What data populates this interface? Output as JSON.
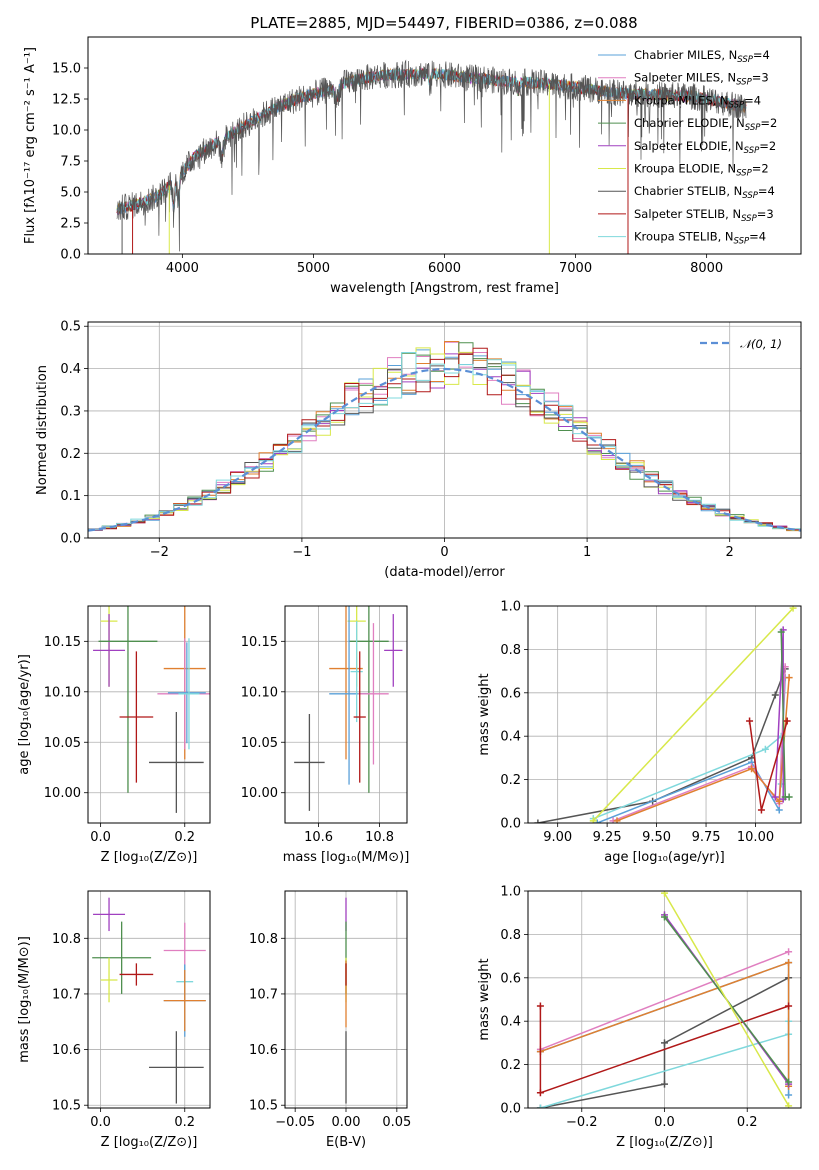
{
  "colors": {
    "chabrier_miles": "#5aa0d8",
    "salpeter_miles": "#e07fc0",
    "kroupa_miles": "#e08030",
    "chabrier_elodie": "#4f8f4f",
    "salpeter_elodie": "#a040c0",
    "kroupa_elodie": "#d8e84a",
    "chabrier_stelib": "#555555",
    "salpeter_stelib": "#b01818",
    "kroupa_stelib": "#7fd8dc",
    "gaussian": "#5b8fd6"
  },
  "chart_data": [
    {
      "id": "spectrum",
      "type": "line",
      "title": "PLATE=2885, MJD=54497, FIBERID=0386, z=0.088",
      "xlabel": "wavelength [Angstrom, rest frame]",
      "ylabel": "Flux [fλ10⁻¹⁷ erg cm⁻² s⁻¹ A⁻¹]",
      "xlim": [
        3280,
        8720
      ],
      "ylim": [
        0,
        17.5
      ],
      "xticks": [
        "4000",
        "5000",
        "6000",
        "7000",
        "8000"
      ],
      "yticks": [
        "0.0",
        "2.5",
        "5.0",
        "7.5",
        "10.0",
        "12.5",
        "15.0"
      ],
      "continuum": {
        "x": [
          3500,
          3650,
          3800,
          3950,
          4100,
          4300,
          4500,
          4700,
          4900,
          5100,
          5300,
          5500,
          5700,
          5900,
          6100,
          6300,
          6500,
          6700,
          6900,
          7100,
          7300,
          7500,
          7700,
          7900,
          8100,
          8300
        ],
        "y": [
          3.6,
          4.0,
          4.6,
          6.0,
          7.9,
          9.2,
          10.5,
          11.7,
          12.6,
          13.2,
          14.0,
          14.4,
          14.5,
          14.6,
          14.3,
          14.1,
          13.9,
          13.8,
          13.6,
          13.3,
          13.0,
          12.9,
          12.8,
          12.7,
          12.3,
          11.8
        ]
      },
      "legend_position": "right",
      "legend": [
        {
          "label": "Chabrier MILES, N",
          "sub": "SSP",
          "eq": "=4",
          "color": "#5aa0d8"
        },
        {
          "label": "Salpeter MILES, N",
          "sub": "SSP",
          "eq": "=3",
          "color": "#e07fc0"
        },
        {
          "label": "Kroupa MILES, N",
          "sub": "SSP",
          "eq": "=4",
          "color": "#e08030"
        },
        {
          "label": "Chabrier ELODIE, N",
          "sub": "SSP",
          "eq": "=2",
          "color": "#4f8f4f"
        },
        {
          "label": "Salpeter ELODIE, N",
          "sub": "SSP",
          "eq": "=2",
          "color": "#a040c0"
        },
        {
          "label": "Kroupa ELODIE, N",
          "sub": "SSP",
          "eq": "=2",
          "color": "#d8e84a"
        },
        {
          "label": "Chabrier STELIB, N",
          "sub": "SSP",
          "eq": "=4",
          "color": "#555555"
        },
        {
          "label": "Salpeter STELIB, N",
          "sub": "SSP",
          "eq": "=3",
          "color": "#b01818"
        },
        {
          "label": "Kroupa STELIB, N",
          "sub": "SSP",
          "eq": "=4",
          "color": "#7fd8dc"
        }
      ]
    },
    {
      "id": "residuals",
      "type": "histogram",
      "xlabel": "(data-model)/error",
      "ylabel": "Normed distribution",
      "xlim": [
        -2.5,
        2.5
      ],
      "ylim": [
        0,
        0.51
      ],
      "xticks": [
        "−2",
        "−1",
        "0",
        "1",
        "2"
      ],
      "yticks": [
        "0.0",
        "0.1",
        "0.2",
        "0.3",
        "0.4",
        "0.5"
      ],
      "bin_width": 0.1,
      "legend_label": "𝒩(0, 1)",
      "grid": true
    },
    {
      "id": "age_vs_Z",
      "type": "errorbar",
      "xlabel": "Z [log₁₀(Z/Z⊙)]",
      "ylabel": "age  [log₁₀(age/yr)]",
      "xlim": [
        -0.03,
        0.26
      ],
      "ylim": [
        9.97,
        10.185
      ],
      "xticks": [
        "0.0",
        "0.2"
      ],
      "yticks": [
        "10.00",
        "10.05",
        "10.10",
        "10.15"
      ],
      "points": [
        {
          "x": 0.02,
          "y": 10.17,
          "xerr": 0.02,
          "yerr": 0.065,
          "color": "#d8e84a"
        },
        {
          "x": 0.02,
          "y": 10.141,
          "xerr": 0.038,
          "yerr": 0.036,
          "color": "#a040c0"
        },
        {
          "x": 0.065,
          "y": 10.15,
          "xerr": 0.07,
          "yerr": 0.15,
          "color": "#4f8f4f"
        },
        {
          "x": 0.2,
          "y": 10.123,
          "xerr": 0.05,
          "yerr": 0.09,
          "color": "#e08030"
        },
        {
          "x": 0.2,
          "y": 10.098,
          "xerr": 0.065,
          "yerr": 0.055,
          "color": "#e07fc0"
        },
        {
          "x": 0.205,
          "y": 10.099,
          "xerr": 0.045,
          "yerr": 0.05,
          "color": "#5aa0d8"
        },
        {
          "x": 0.21,
          "y": 10.098,
          "xerr": 0.025,
          "yerr": 0.055,
          "color": "#7fd8dc"
        },
        {
          "x": 0.085,
          "y": 10.075,
          "xerr": 0.04,
          "yerr": 0.065,
          "color": "#b01818"
        },
        {
          "x": 0.18,
          "y": 10.03,
          "xerr": 0.065,
          "yerr": 0.05,
          "color": "#555555"
        }
      ]
    },
    {
      "id": "age_vs_mass",
      "type": "errorbar",
      "xlabel": "mass [log₁₀(M/M⊙)]",
      "ylabel": "",
      "xlim": [
        10.49,
        10.89
      ],
      "ylim": [
        9.97,
        10.185
      ],
      "xticks": [
        "10.6",
        "10.8"
      ],
      "yticks": [
        "10.00",
        "10.05",
        "10.10",
        "10.15"
      ],
      "points": [
        {
          "x": 10.725,
          "y": 10.17,
          "xerr": 0.03,
          "yerr": 0.065,
          "color": "#d8e84a"
        },
        {
          "x": 10.845,
          "y": 10.141,
          "xerr": 0.03,
          "yerr": 0.036,
          "color": "#a040c0"
        },
        {
          "x": 10.765,
          "y": 10.15,
          "xerr": 0.065,
          "yerr": 0.15,
          "color": "#4f8f4f"
        },
        {
          "x": 10.69,
          "y": 10.123,
          "xerr": 0.055,
          "yerr": 0.09,
          "color": "#e08030"
        },
        {
          "x": 10.7,
          "y": 10.098,
          "xerr": 0.065,
          "yerr": 0.09,
          "color": "#5aa0d8"
        },
        {
          "x": 10.78,
          "y": 10.098,
          "xerr": 0.05,
          "yerr": 0.07,
          "color": "#e07fc0"
        },
        {
          "x": 10.725,
          "y": 10.12,
          "xerr": 0.02,
          "yerr": 0.05,
          "color": "#7fd8dc"
        },
        {
          "x": 10.735,
          "y": 10.075,
          "xerr": 0.02,
          "yerr": 0.065,
          "color": "#b01818"
        },
        {
          "x": 10.57,
          "y": 10.03,
          "xerr": 0.05,
          "yerr": 0.048,
          "color": "#555555"
        }
      ]
    },
    {
      "id": "weight_vs_age",
      "type": "line",
      "xlabel": "age  [log₁₀(age/yr)]",
      "ylabel": "mass weight",
      "xlim": [
        8.85,
        10.23
      ],
      "ylim": [
        0,
        1
      ],
      "xticks": [
        "9.00",
        "9.25",
        "9.50",
        "9.75",
        "10.00"
      ],
      "yticks": [
        "0.0",
        "0.2",
        "0.4",
        "0.6",
        "0.8",
        "1.0"
      ],
      "series": [
        {
          "color": "#555555",
          "x": [
            8.9,
            9.48,
            9.98,
            10.1,
            10.15
          ],
          "y": [
            0.0,
            0.1,
            0.3,
            0.59,
            0.71
          ]
        },
        {
          "color": "#7fd8dc",
          "x": [
            9.18,
            10.05,
            10.13,
            10.13
          ],
          "y": [
            0.02,
            0.34,
            0.4,
            0.18
          ]
        },
        {
          "color": "#5aa0d8",
          "x": [
            9.2,
            9.98,
            10.12,
            10.15
          ],
          "y": [
            0.0,
            0.28,
            0.06,
            0.67
          ]
        },
        {
          "color": "#e07fc0",
          "x": [
            9.28,
            9.98,
            10.12,
            10.15
          ],
          "y": [
            0.01,
            0.26,
            0.09,
            0.72
          ]
        },
        {
          "color": "#e08030",
          "x": [
            9.3,
            9.98,
            10.12,
            10.17
          ],
          "y": [
            0.01,
            0.25,
            0.1,
            0.67
          ]
        },
        {
          "color": "#a040c0",
          "x": [
            10.1,
            10.14,
            10.14
          ],
          "y": [
            0.12,
            0.89,
            0.11
          ]
        },
        {
          "color": "#4f8f4f",
          "x": [
            10.13,
            10.15,
            10.17
          ],
          "y": [
            0.88,
            0.12,
            0.12
          ]
        },
        {
          "color": "#b01818",
          "x": [
            9.97,
            10.03,
            10.16
          ],
          "y": [
            0.47,
            0.06,
            0.47
          ]
        },
        {
          "color": "#d8e84a",
          "x": [
            9.18,
            10.19
          ],
          "y": [
            0.01,
            0.99
          ]
        }
      ]
    },
    {
      "id": "mass_vs_Z",
      "type": "errorbar",
      "xlabel": "Z [log₁₀(Z/Z⊙)]",
      "ylabel": "mass [log₁₀(M/M⊙)]",
      "xlim": [
        -0.03,
        0.26
      ],
      "ylim": [
        10.495,
        10.885
      ],
      "xticks": [
        "0.0",
        "0.2"
      ],
      "yticks": [
        "10.5",
        "10.6",
        "10.7",
        "10.8"
      ],
      "points": [
        {
          "x": 0.02,
          "y": 10.843,
          "xerr": 0.038,
          "yerr": 0.03,
          "color": "#a040c0"
        },
        {
          "x": 0.05,
          "y": 10.765,
          "xerr": 0.07,
          "yerr": 0.065,
          "color": "#4f8f4f"
        },
        {
          "x": 0.02,
          "y": 10.725,
          "xerr": 0.02,
          "yerr": 0.04,
          "color": "#d8e84a"
        },
        {
          "x": 0.085,
          "y": 10.735,
          "xerr": 0.04,
          "yerr": 0.02,
          "color": "#b01818"
        },
        {
          "x": 0.2,
          "y": 10.778,
          "xerr": 0.05,
          "yerr": 0.05,
          "color": "#e07fc0"
        },
        {
          "x": 0.2,
          "y": 10.722,
          "xerr": 0.02,
          "yerr": 0.03,
          "color": "#7fd8dc"
        },
        {
          "x": 0.2,
          "y": 10.688,
          "xerr": 0.05,
          "yerr": 0.065,
          "color": "#5aa0d8"
        },
        {
          "x": 0.2,
          "y": 10.688,
          "xerr": 0.05,
          "yerr": 0.055,
          "color": "#e08030"
        },
        {
          "x": 0.18,
          "y": 10.568,
          "xerr": 0.065,
          "yerr": 0.065,
          "color": "#555555"
        }
      ]
    },
    {
      "id": "mass_vs_ebv",
      "type": "errorbar",
      "xlabel": "E(B-V)",
      "ylabel": "",
      "xlim": [
        -0.06,
        0.06
      ],
      "ylim": [
        10.495,
        10.885
      ],
      "xticks": [
        "−0.05",
        "0.00",
        "0.05"
      ],
      "yticks": [
        "10.5",
        "10.6",
        "10.7",
        "10.8"
      ],
      "points": [
        {
          "x": 0,
          "y": 10.843,
          "xerr": 0,
          "yerr": 0.03,
          "color": "#a040c0"
        },
        {
          "x": 0,
          "y": 10.765,
          "xerr": 0,
          "yerr": 0.065,
          "color": "#4f8f4f"
        },
        {
          "x": 0,
          "y": 10.725,
          "xerr": 0,
          "yerr": 0.04,
          "color": "#d8e84a"
        },
        {
          "x": 0,
          "y": 10.7,
          "xerr": 0,
          "yerr": 0.06,
          "color": "#e08030"
        },
        {
          "x": 0,
          "y": 10.735,
          "xerr": 0,
          "yerr": 0.02,
          "color": "#b01818"
        },
        {
          "x": 0,
          "y": 10.568,
          "xerr": 0,
          "yerr": 0.065,
          "color": "#555555"
        }
      ]
    },
    {
      "id": "weight_vs_Z",
      "type": "line",
      "xlabel": "Z [log₁₀(Z/Z⊙)]",
      "ylabel": "mass weight",
      "xlim": [
        -0.33,
        0.33
      ],
      "ylim": [
        0,
        1
      ],
      "xticks": [
        "−0.2",
        "0.0",
        "0.2"
      ],
      "yticks": [
        "0.0",
        "0.2",
        "0.4",
        "0.6",
        "0.8",
        "1.0"
      ],
      "series": [
        {
          "color": "#555555",
          "x": [
            -0.3,
            0.0,
            0.0,
            0.3
          ],
          "y": [
            0.0,
            0.11,
            0.3,
            0.6
          ]
        },
        {
          "color": "#7fd8dc",
          "x": [
            -0.3,
            0.3,
            0.3
          ],
          "y": [
            0.0,
            0.34,
            0.4
          ]
        },
        {
          "color": "#e07fc0",
          "x": [
            -0.3,
            0.3
          ],
          "y": [
            0.27,
            0.72
          ]
        },
        {
          "color": "#5aa0d8",
          "x": [
            -0.3,
            0.3,
            0.3
          ],
          "y": [
            0.26,
            0.67,
            0.06
          ]
        },
        {
          "color": "#e08030",
          "x": [
            -0.3,
            0.3,
            0.3
          ],
          "y": [
            0.26,
            0.67,
            0.1
          ]
        },
        {
          "color": "#b01818",
          "x": [
            -0.3,
            -0.3,
            0.3
          ],
          "y": [
            0.47,
            0.07,
            0.47
          ]
        },
        {
          "color": "#a040c0",
          "x": [
            0.0,
            0.3
          ],
          "y": [
            0.89,
            0.11
          ]
        },
        {
          "color": "#4f8f4f",
          "x": [
            0.0,
            0.3
          ],
          "y": [
            0.88,
            0.12
          ]
        },
        {
          "color": "#d8e84a",
          "x": [
            0.0,
            0.3
          ],
          "y": [
            0.99,
            0.01
          ]
        }
      ]
    }
  ]
}
